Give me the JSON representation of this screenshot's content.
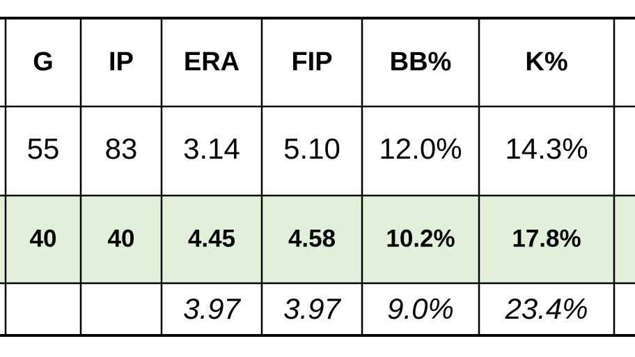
{
  "table": {
    "header": [
      "G",
      "IP",
      "ERA",
      "FIP",
      "BB%",
      "K%"
    ],
    "rows": [
      [
        "55",
        "83",
        "3.14",
        "5.10",
        "12.0%",
        "14.3%"
      ],
      [
        "40",
        "40",
        "4.45",
        "4.58",
        "10.2%",
        "17.8%"
      ],
      [
        null,
        null,
        "3.97",
        "3.97",
        "9.0%",
        "23.4%"
      ]
    ]
  }
}
